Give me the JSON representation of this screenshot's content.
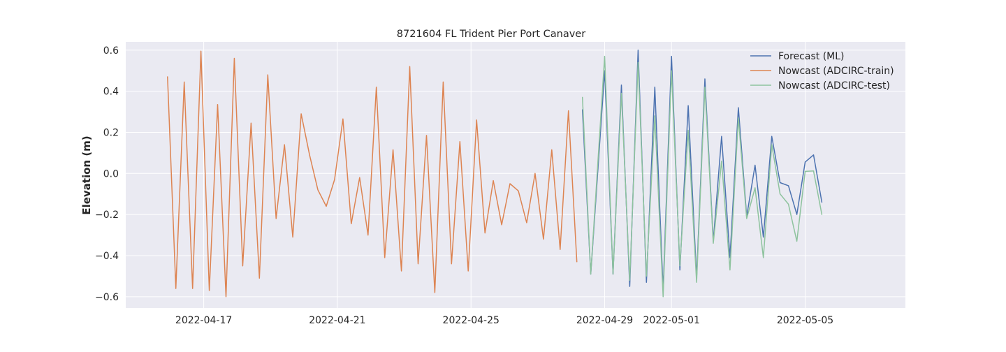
{
  "chart_data": {
    "type": "line",
    "title": "8721604 FL Trident Pier Port Canaver",
    "xlabel": "",
    "ylabel": "Elevation (m)",
    "x_axis": {
      "type": "date",
      "range": [
        "2022-04-14 16:00",
        "2022-05-08 00:00"
      ],
      "tick_labels": [
        "2022-04-17",
        "2022-04-21",
        "2022-04-25",
        "2022-04-29",
        "2022-05-01",
        "2022-05-05"
      ]
    },
    "ylim": [
      -0.655,
      0.64
    ],
    "yticks": [
      -0.6,
      -0.4,
      -0.2,
      0.0,
      0.2,
      0.4,
      0.6
    ],
    "ytick_labels": [
      "−0.6",
      "−0.4",
      "−0.2",
      "0.0",
      "0.2",
      "0.4",
      "0.6"
    ],
    "grid": true,
    "legend_position": "top-right",
    "series": [
      {
        "name": "Forecast (ML)",
        "color": "#4c72b0",
        "points": [
          [
            "2022-04-28 08:00",
            0.31
          ],
          [
            "2022-04-28 14:00",
            -0.49
          ],
          [
            "2022-04-29 00:00",
            0.5
          ],
          [
            "2022-04-29 06:00",
            -0.49
          ],
          [
            "2022-04-29 12:00",
            0.43
          ],
          [
            "2022-04-29 18:00",
            -0.55
          ],
          [
            "2022-04-30 00:00",
            0.6
          ],
          [
            "2022-04-30 06:00",
            -0.53
          ],
          [
            "2022-04-30 12:00",
            0.42
          ],
          [
            "2022-04-30 18:00",
            -0.57
          ],
          [
            "2022-05-01 00:00",
            0.57
          ],
          [
            "2022-05-01 06:00",
            -0.47
          ],
          [
            "2022-05-01 12:00",
            0.33
          ],
          [
            "2022-05-01 18:00",
            -0.51
          ],
          [
            "2022-05-02 00:00",
            0.46
          ],
          [
            "2022-05-02 06:00",
            -0.33
          ],
          [
            "2022-05-02 12:00",
            0.18
          ],
          [
            "2022-05-02 18:00",
            -0.41
          ],
          [
            "2022-05-03 00:00",
            0.32
          ],
          [
            "2022-05-03 06:00",
            -0.21
          ],
          [
            "2022-05-03 12:00",
            0.04
          ],
          [
            "2022-05-03 18:00",
            -0.31
          ],
          [
            "2022-05-04 00:00",
            0.18
          ],
          [
            "2022-05-04 06:00",
            -0.045
          ],
          [
            "2022-05-04 12:00",
            -0.06
          ],
          [
            "2022-05-04 18:00",
            -0.2
          ],
          [
            "2022-05-05 00:00",
            0.055
          ],
          [
            "2022-05-05 06:00",
            0.09
          ],
          [
            "2022-05-05 12:00",
            -0.14
          ]
        ]
      },
      {
        "name": "Nowcast (ADCIRC-train)",
        "color": "#dd8452",
        "points": [
          [
            "2022-04-15 22:00",
            0.47
          ],
          [
            "2022-04-16 04:00",
            -0.56
          ],
          [
            "2022-04-16 10:00",
            0.445
          ],
          [
            "2022-04-16 16:00",
            -0.56
          ],
          [
            "2022-04-16 22:00",
            0.595
          ],
          [
            "2022-04-17 04:00",
            -0.57
          ],
          [
            "2022-04-17 10:00",
            0.335
          ],
          [
            "2022-04-17 16:00",
            -0.6
          ],
          [
            "2022-04-17 22:00",
            0.56
          ],
          [
            "2022-04-18 04:00",
            -0.45
          ],
          [
            "2022-04-18 10:00",
            0.245
          ],
          [
            "2022-04-18 16:00",
            -0.51
          ],
          [
            "2022-04-18 22:00",
            0.48
          ],
          [
            "2022-04-19 04:00",
            -0.22
          ],
          [
            "2022-04-19 10:00",
            0.14
          ],
          [
            "2022-04-19 16:00",
            -0.31
          ],
          [
            "2022-04-19 22:00",
            0.29
          ],
          [
            "2022-04-20 04:00",
            0.09
          ],
          [
            "2022-04-20 10:00",
            -0.08
          ],
          [
            "2022-04-20 16:00",
            -0.16
          ],
          [
            "2022-04-20 22:00",
            -0.03
          ],
          [
            "2022-04-21 04:00",
            0.265
          ],
          [
            "2022-04-21 10:00",
            -0.245
          ],
          [
            "2022-04-21 16:00",
            -0.02
          ],
          [
            "2022-04-21 22:00",
            -0.3
          ],
          [
            "2022-04-22 04:00",
            0.42
          ],
          [
            "2022-04-22 10:00",
            -0.41
          ],
          [
            "2022-04-22 16:00",
            0.115
          ],
          [
            "2022-04-22 22:00",
            -0.475
          ],
          [
            "2022-04-23 04:00",
            0.52
          ],
          [
            "2022-04-23 10:00",
            -0.44
          ],
          [
            "2022-04-23 16:00",
            0.185
          ],
          [
            "2022-04-23 22:00",
            -0.58
          ],
          [
            "2022-04-24 04:00",
            0.445
          ],
          [
            "2022-04-24 10:00",
            -0.44
          ],
          [
            "2022-04-24 16:00",
            0.155
          ],
          [
            "2022-04-24 22:00",
            -0.475
          ],
          [
            "2022-04-25 04:00",
            0.26
          ],
          [
            "2022-04-25 10:00",
            -0.29
          ],
          [
            "2022-04-25 16:00",
            -0.035
          ],
          [
            "2022-04-25 22:00",
            -0.25
          ],
          [
            "2022-04-26 04:00",
            -0.05
          ],
          [
            "2022-04-26 10:00",
            -0.085
          ],
          [
            "2022-04-26 16:00",
            -0.24
          ],
          [
            "2022-04-26 22:00",
            0.0
          ],
          [
            "2022-04-27 04:00",
            -0.32
          ],
          [
            "2022-04-27 10:00",
            0.115
          ],
          [
            "2022-04-27 16:00",
            -0.37
          ],
          [
            "2022-04-27 22:00",
            0.305
          ],
          [
            "2022-04-28 04:00",
            -0.43
          ]
        ]
      },
      {
        "name": "Nowcast (ADCIRC-test)",
        "color": "#8ec39e",
        "points": [
          [
            "2022-04-28 08:00",
            0.37
          ],
          [
            "2022-04-28 14:00",
            -0.49
          ],
          [
            "2022-04-29 00:00",
            0.57
          ],
          [
            "2022-04-29 06:00",
            -0.49
          ],
          [
            "2022-04-29 12:00",
            0.39
          ],
          [
            "2022-04-29 18:00",
            -0.52
          ],
          [
            "2022-04-30 00:00",
            0.54
          ],
          [
            "2022-04-30 06:00",
            -0.5
          ],
          [
            "2022-04-30 12:00",
            0.28
          ],
          [
            "2022-04-30 18:00",
            -0.6
          ],
          [
            "2022-05-01 00:00",
            0.5
          ],
          [
            "2022-05-01 06:00",
            -0.45
          ],
          [
            "2022-05-01 12:00",
            0.21
          ],
          [
            "2022-05-01 18:00",
            -0.53
          ],
          [
            "2022-05-02 00:00",
            0.42
          ],
          [
            "2022-05-02 06:00",
            -0.34
          ],
          [
            "2022-05-02 12:00",
            0.06
          ],
          [
            "2022-05-02 18:00",
            -0.47
          ],
          [
            "2022-05-03 00:00",
            0.27
          ],
          [
            "2022-05-03 06:00",
            -0.22
          ],
          [
            "2022-05-03 12:00",
            -0.07
          ],
          [
            "2022-05-03 18:00",
            -0.41
          ],
          [
            "2022-05-04 00:00",
            0.14
          ],
          [
            "2022-05-04 06:00",
            -0.1
          ],
          [
            "2022-05-04 12:00",
            -0.15
          ],
          [
            "2022-05-04 18:00",
            -0.33
          ],
          [
            "2022-05-05 00:00",
            0.01
          ],
          [
            "2022-05-05 06:00",
            0.012
          ],
          [
            "2022-05-05 12:00",
            -0.2
          ]
        ]
      }
    ]
  }
}
